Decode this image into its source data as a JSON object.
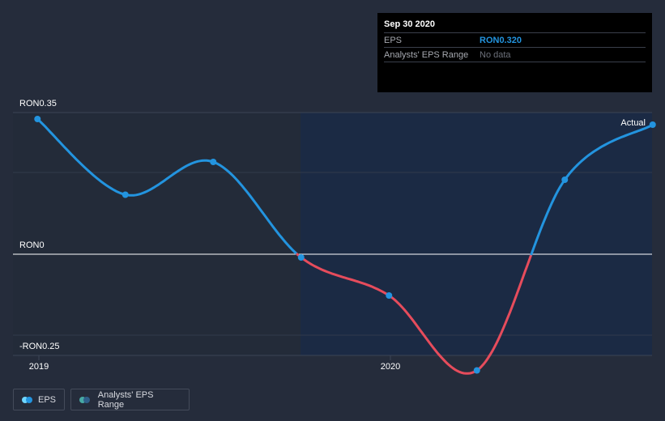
{
  "chart_data": {
    "type": "line",
    "title": "",
    "xlabel": "",
    "ylabel": "",
    "ylim": [
      -0.25,
      0.35
    ],
    "x_ticks": [
      "2019",
      "2020"
    ],
    "y_tick_labels": {
      "top": "RON0.35",
      "zero": "RON0",
      "bottom": "-RON0.25"
    },
    "series": [
      {
        "name": "EPS",
        "x": [
          2018.996,
          2019.246,
          2019.496,
          2019.746,
          2019.996,
          2020.246,
          2020.496,
          2020.746
        ],
        "values": [
          0.334,
          0.147,
          0.228,
          -0.008,
          -0.102,
          -0.287,
          0.184,
          0.32
        ]
      }
    ],
    "marker_label": "Actual",
    "colors": {
      "positive": "#2394df",
      "negative": "#e64c5c",
      "forecast_bg": "#172a48"
    }
  },
  "tooltip": {
    "date": "Sep 30 2020",
    "rows": [
      {
        "label": "EPS",
        "value": "RON0.320"
      },
      {
        "label": "Analysts' EPS Range",
        "value": "No data"
      }
    ]
  },
  "legend": {
    "eps_label": "EPS",
    "range_label": "Analysts' EPS Range",
    "eps_colors": [
      "#6fd6ff",
      "#2394df"
    ],
    "range_colors": [
      "#47a9a5",
      "#2f5f8a"
    ]
  }
}
